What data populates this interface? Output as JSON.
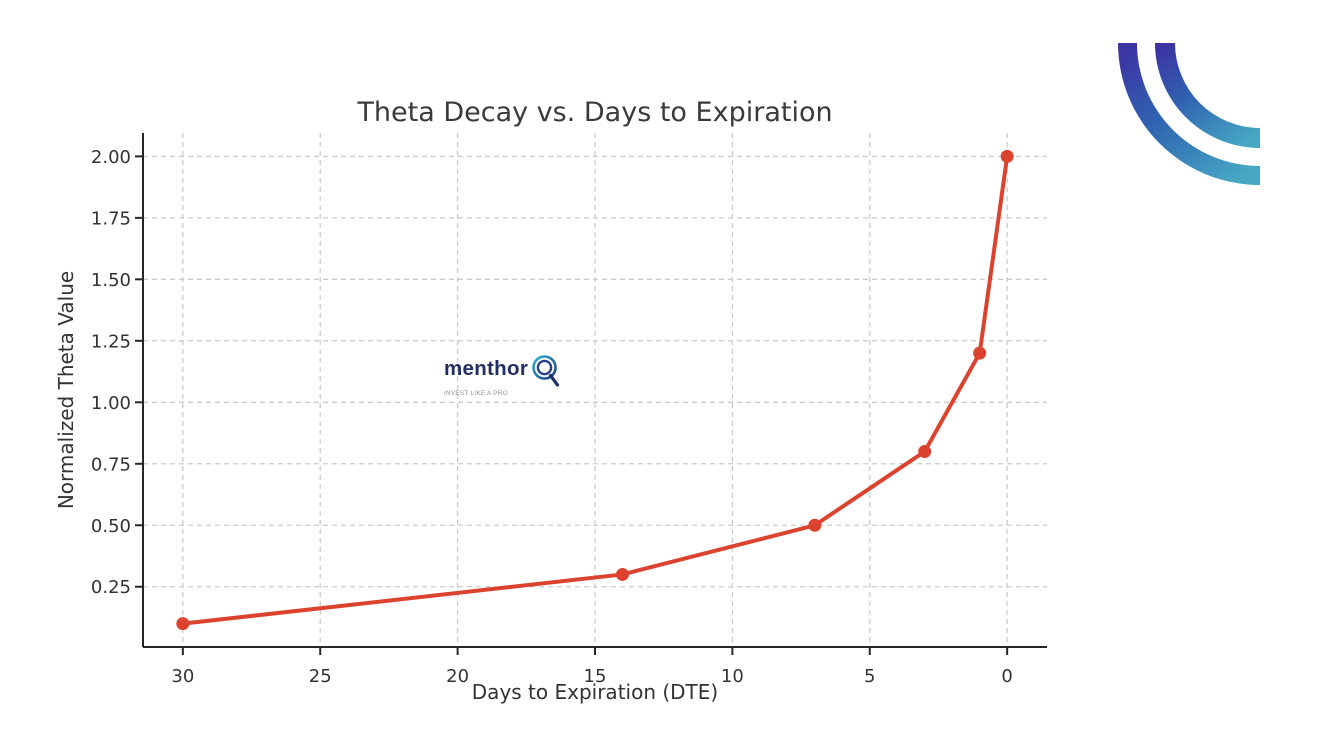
{
  "chart_data": {
    "type": "line",
    "title": "Theta Decay vs. Days to Expiration",
    "xlabel": "Days to Expiration (DTE)",
    "ylabel": "Normalized Theta Value",
    "x": [
      30,
      14,
      7,
      3,
      1,
      0
    ],
    "y": [
      0.1,
      0.3,
      0.5,
      0.8,
      1.2,
      2.0
    ],
    "x_ticks": [
      30,
      25,
      20,
      15,
      10,
      5,
      0
    ],
    "y_tick_labels": [
      "0.25",
      "0.50",
      "0.75",
      "1.00",
      "1.25",
      "1.50",
      "1.75",
      "2.00"
    ],
    "y_tick_values": [
      0.25,
      0.5,
      0.75,
      1.0,
      1.25,
      1.5,
      1.75,
      2.0
    ],
    "x_axis_reversed": true,
    "xlim": [
      31.45,
      -1.45
    ],
    "ylim": [
      0.005,
      2.095
    ],
    "grid": true,
    "legend": "none",
    "line_color": "#dc432e",
    "marker": "circle",
    "marker_color": "#dc432e",
    "grid_color": "#cbcbcb",
    "axis_color": "#262626",
    "text_color": "#333333"
  },
  "watermark": {
    "brand": "menthor",
    "q_icon": "concentric-circles-q",
    "tagline": "INVEST LIKE A PRO",
    "brand_color": "#222e63",
    "tagline_color": "#8f8f8f",
    "icon_cyan": "#2ab6d4",
    "icon_navy": "#203a80"
  },
  "decoration": {
    "name": "double-arc-swoosh",
    "position": "top-right",
    "gradient_start": "#3d33a3",
    "gradient_mid": "#2f63b0",
    "gradient_end": "#47a8c4"
  }
}
